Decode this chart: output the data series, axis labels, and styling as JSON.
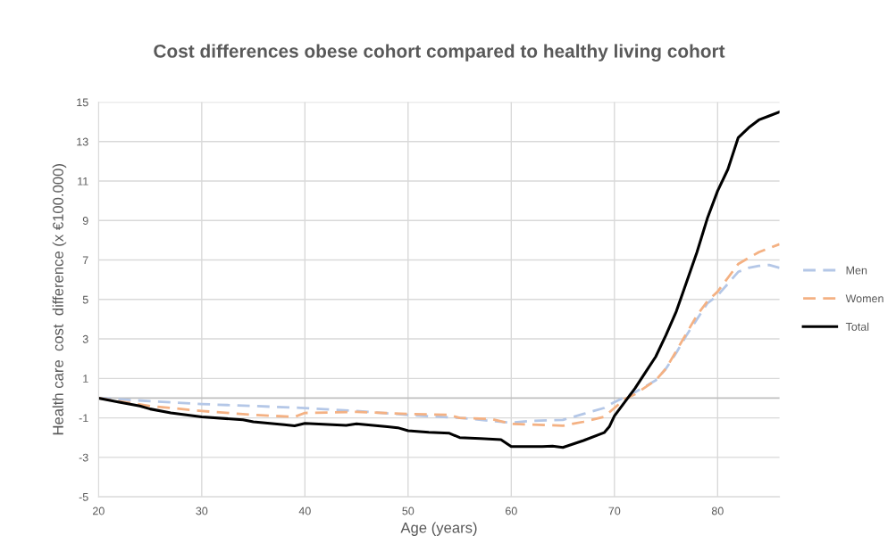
{
  "chart_data": {
    "type": "line",
    "title": "Cost differences obese cohort compared to healthy living cohort",
    "xlabel": "Age (years)",
    "ylabel": "Health care  cost  difference (x €100.000)",
    "xlim": [
      20,
      86
    ],
    "xticks": [
      20,
      30,
      40,
      50,
      60,
      70,
      80
    ],
    "ylim": [
      -5,
      15
    ],
    "yticks": [
      -5,
      -3,
      -1,
      1,
      3,
      5,
      7,
      9,
      11,
      13,
      15
    ],
    "grid": true,
    "legend": "right",
    "marker": "none",
    "ref_lines": [
      {
        "axis": "y",
        "value": 0,
        "color": "#bfbfbf"
      }
    ],
    "series": [
      {
        "name": "Men",
        "color": "#b4c7e7",
        "line_style": "dashed",
        "x": [
          20,
          25,
          30,
          35,
          40,
          45,
          50,
          55,
          60,
          62,
          65,
          67,
          69,
          70,
          71,
          72,
          74,
          75,
          76,
          77,
          78,
          79,
          80,
          81,
          82,
          83,
          84,
          85,
          86
        ],
        "values": [
          0,
          -0.15,
          -0.3,
          -0.4,
          -0.5,
          -0.65,
          -0.85,
          -1.0,
          -1.25,
          -1.15,
          -1.1,
          -0.8,
          -0.5,
          -0.2,
          0.05,
          0.3,
          0.9,
          1.5,
          2.3,
          3.2,
          4.0,
          4.8,
          5.2,
          5.8,
          6.4,
          6.6,
          6.7,
          6.75,
          6.6
        ]
      },
      {
        "name": "Women",
        "color": "#f4b183",
        "line_style": "dashed",
        "x": [
          20,
          25,
          30,
          35,
          39,
          40,
          45,
          50,
          54,
          55,
          58,
          60,
          65,
          67,
          69,
          70,
          71,
          72,
          74,
          75,
          76,
          77,
          78,
          79,
          80,
          81,
          82,
          83,
          84,
          85,
          86
        ],
        "values": [
          0,
          -0.4,
          -0.65,
          -0.85,
          -0.95,
          -0.75,
          -0.7,
          -0.8,
          -0.85,
          -1.0,
          -1.05,
          -1.3,
          -1.4,
          -1.2,
          -0.95,
          -0.5,
          -0.05,
          0.2,
          0.9,
          1.5,
          2.4,
          3.3,
          4.2,
          4.9,
          5.4,
          6.1,
          6.8,
          7.1,
          7.4,
          7.6,
          7.8
        ]
      },
      {
        "name": "Total",
        "color": "#000000",
        "line_style": "solid",
        "x": [
          20,
          22,
          24,
          25,
          27,
          30,
          34,
          35,
          38,
          39,
          40,
          44,
          45,
          48,
          49,
          50,
          52,
          54,
          55,
          57,
          59,
          60,
          63,
          64,
          65,
          67,
          69,
          69.5,
          70,
          71,
          72,
          73,
          74,
          75,
          76,
          77,
          78,
          79,
          80,
          81,
          82,
          83,
          84,
          85,
          86
        ],
        "values": [
          0,
          -0.2,
          -0.4,
          -0.55,
          -0.75,
          -0.95,
          -1.1,
          -1.2,
          -1.35,
          -1.4,
          -1.28,
          -1.38,
          -1.3,
          -1.45,
          -1.5,
          -1.65,
          -1.73,
          -1.78,
          -2.0,
          -2.05,
          -2.1,
          -2.45,
          -2.45,
          -2.43,
          -2.5,
          -2.15,
          -1.75,
          -1.45,
          -0.9,
          -0.2,
          0.5,
          1.3,
          2.1,
          3.2,
          4.4,
          5.9,
          7.4,
          9.1,
          10.5,
          11.6,
          13.2,
          13.7,
          14.1,
          14.3,
          14.5
        ]
      }
    ]
  }
}
